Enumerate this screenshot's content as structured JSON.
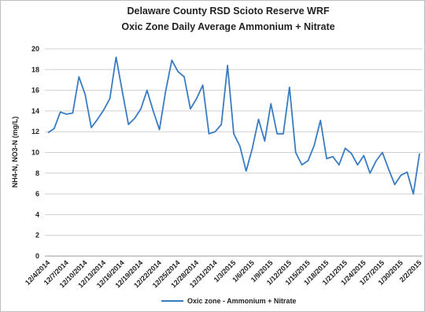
{
  "chart_data": {
    "type": "line",
    "title": "Delaware County RSD Scioto Reserve WRF",
    "subtitle": "Oxic Zone Daily Average Ammonium + Nitrate",
    "y_label": "NH4-N, NO3-N (mg/L)",
    "categories": [
      "12/4/2014",
      null,
      null,
      "12/7/2014",
      null,
      null,
      "12/10/2014",
      null,
      null,
      "12/13/2014",
      null,
      null,
      "12/16/2014",
      null,
      null,
      "12/19/2014",
      null,
      null,
      "12/22/2014",
      null,
      null,
      "12/25/2014",
      null,
      null,
      "12/28/2014",
      null,
      null,
      "12/31/2014",
      null,
      null,
      "1/3/2015",
      null,
      null,
      "1/6/2015",
      null,
      null,
      "1/9/2015",
      null,
      null,
      "1/12/2015",
      null,
      null,
      "1/15/2015",
      null,
      null,
      "1/18/2015",
      null,
      null,
      "1/21/2015",
      null,
      null,
      "1/24/2015",
      null,
      null,
      "1/27/2015",
      null,
      null,
      "1/30/2015",
      null,
      null,
      "2/2/2015"
    ],
    "series": [
      {
        "name": "Oxic zone - Ammonium + Nitrate",
        "color": "#3a7cc2",
        "values": [
          11.9,
          12.3,
          13.9,
          13.7,
          13.8,
          17.3,
          15.6,
          12.4,
          13.2,
          14.1,
          15.2,
          19.2,
          15.9,
          12.7,
          13.3,
          14.2,
          16.0,
          14.0,
          12.2,
          15.9,
          18.9,
          17.8,
          17.3,
          14.2,
          15.2,
          16.5,
          11.8,
          12.0,
          12.7,
          18.4,
          11.8,
          10.6,
          8.2,
          10.4,
          13.2,
          11.1,
          14.7,
          11.8,
          11.8,
          16.3,
          10.0,
          8.8,
          9.2,
          10.7,
          13.1,
          9.4,
          9.6,
          8.8,
          10.4,
          9.9,
          8.8,
          9.7,
          8.0,
          9.2,
          10.0,
          8.4,
          6.9,
          7.8,
          8.1,
          6.0,
          9.9
        ]
      }
    ],
    "ylim": [
      0,
      20
    ],
    "yticks": [
      0,
      2,
      4,
      6,
      8,
      10,
      12,
      14,
      16,
      18,
      20
    ],
    "grid": true,
    "legend": "bottom"
  }
}
